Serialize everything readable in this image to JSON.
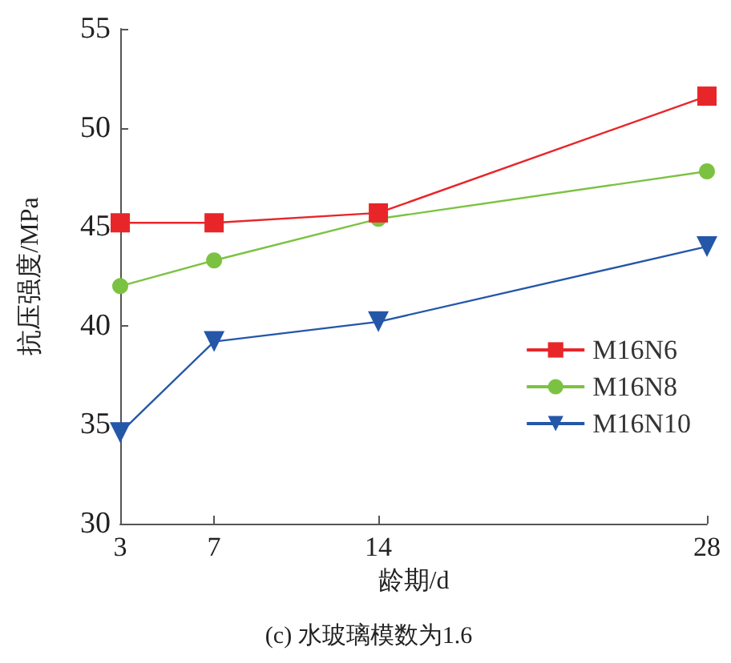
{
  "chart_data": {
    "type": "line",
    "title": "(c) 水玻璃模数为1.6",
    "xlabel": "龄期/d",
    "ylabel": "抗压强度/MPa",
    "x": [
      3,
      7,
      14,
      28
    ],
    "series": [
      {
        "name": "M16N6",
        "color": "#e8262a",
        "marker": "square",
        "values": [
          45.2,
          45.2,
          45.7,
          51.6
        ]
      },
      {
        "name": "M16N8",
        "color": "#7cc242",
        "marker": "circle",
        "values": [
          42.0,
          43.3,
          45.4,
          47.8
        ]
      },
      {
        "name": "M16N10",
        "color": "#2457a8",
        "marker": "triangle",
        "values": [
          34.6,
          39.2,
          40.2,
          44.0
        ]
      }
    ],
    "xlim": [
      3,
      28
    ],
    "xticks": [
      3,
      7,
      14,
      28
    ],
    "ylim": [
      30,
      55
    ],
    "yticks": [
      30,
      35,
      40,
      45,
      50,
      55
    ],
    "grid": false,
    "legend": "right",
    "line_style": "solid"
  }
}
